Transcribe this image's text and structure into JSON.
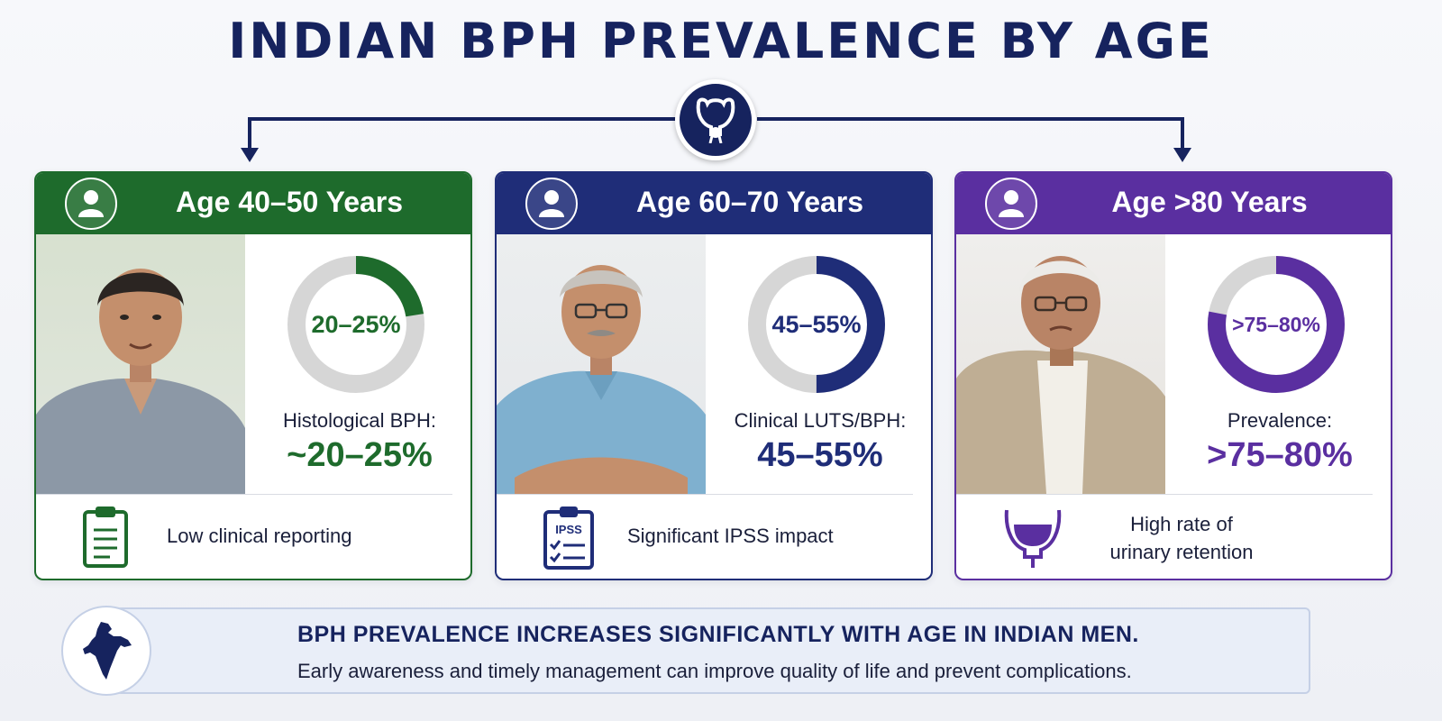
{
  "title": "INDIAN BPH PREVALENCE BY AGE",
  "colors": {
    "navy": "#16235e",
    "green": "#1e6b2c",
    "blue": "#1f2d78",
    "purple": "#5a2fa0",
    "track": "#d6d6d6"
  },
  "cards": [
    {
      "heading": "Age 40–50 Years",
      "donut_label": "20–25%",
      "donut_fraction": 0.225,
      "metric_label": "Histological BPH:",
      "metric_value": "~20–25%",
      "footer": "Low clinical reporting",
      "footer_icon": "clipboard-icon"
    },
    {
      "heading": "Age 60–70 Years",
      "donut_label": "45–55%",
      "donut_fraction": 0.5,
      "metric_label": "Clinical LUTS/BPH:",
      "metric_value": "45–55%",
      "footer": "Significant IPSS impact",
      "footer_icon": "ipss-checklist-icon",
      "footer_icon_text": "IPSS"
    },
    {
      "heading": "Age >80 Years",
      "donut_label": ">75–80%",
      "donut_fraction": 0.78,
      "metric_label": "Prevalence:",
      "metric_value": ">75–80%",
      "footer_line1": "High rate of",
      "footer_line2": "urinary retention",
      "footer_icon": "bladder-icon"
    }
  ],
  "banner": {
    "title": "BPH PREVALENCE INCREASES SIGNIFICANTLY WITH AGE IN INDIAN MEN.",
    "subtitle": "Early awareness and timely management can improve quality of life and prevent complications.",
    "icon": "india-map-icon"
  }
}
